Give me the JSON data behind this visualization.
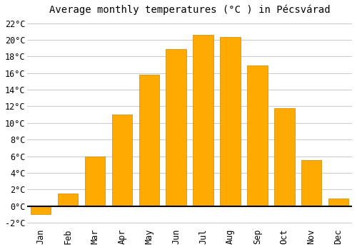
{
  "title": "Average monthly temperatures (°C ) in Pécsvárad",
  "months": [
    "Jan",
    "Feb",
    "Mar",
    "Apr",
    "May",
    "Jun",
    "Jul",
    "Aug",
    "Sep",
    "Oct",
    "Nov",
    "Dec"
  ],
  "values": [
    -1.0,
    1.5,
    6.0,
    11.0,
    15.8,
    18.9,
    20.6,
    20.3,
    16.9,
    11.8,
    5.5,
    0.9
  ],
  "bar_color": "#FFAA00",
  "bar_edge_color": "#CC8800",
  "neg_bar_color": "#FFAA00",
  "ylim": [
    -2.5,
    22.5
  ],
  "yticks": [
    -2,
    0,
    2,
    4,
    6,
    8,
    10,
    12,
    14,
    16,
    18,
    20,
    22
  ],
  "ytick_labels": [
    "-2°C",
    "0°C",
    "2°C",
    "4°C",
    "6°C",
    "8°C",
    "10°C",
    "12°C",
    "14°C",
    "16°C",
    "18°C",
    "20°C",
    "22°C"
  ],
  "background_color": "#ffffff",
  "grid_color": "#cccccc",
  "title_fontsize": 10,
  "tick_fontsize": 8.5,
  "bar_width": 0.75
}
